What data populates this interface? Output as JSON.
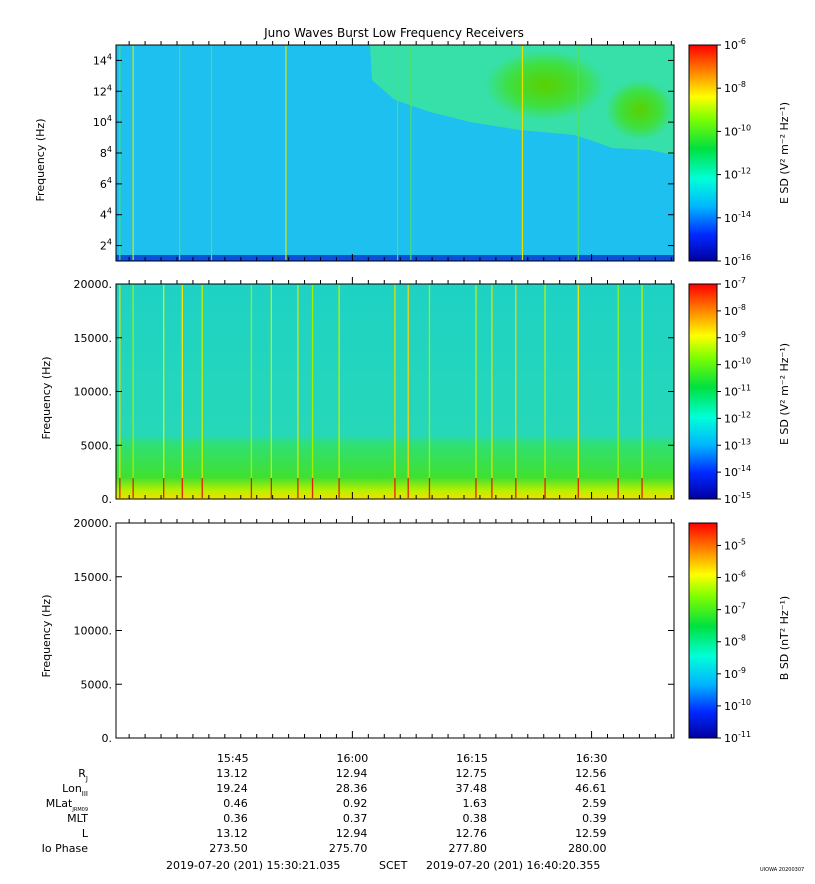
{
  "title": "Juno Waves Burst Low Frequency Receivers",
  "panels": [
    {
      "id": "top",
      "ylabel": "Frequency (Hz)",
      "yticks": [
        {
          "v": 20000,
          "m": "2",
          "e": "4"
        },
        {
          "v": 40000,
          "m": "4",
          "e": "4"
        },
        {
          "v": 60000,
          "m": "6",
          "e": "4"
        },
        {
          "v": 80000,
          "m": "8",
          "e": "4"
        },
        {
          "v": 100000,
          "m": "10",
          "e": "4"
        },
        {
          "v": 120000,
          "m": "12",
          "e": "4"
        },
        {
          "v": 140000,
          "m": "14",
          "e": "4"
        }
      ],
      "ylim": [
        10000,
        150000
      ],
      "colorbar_label": "E SD (V² m⁻² Hz⁻¹)",
      "cb_ticks": [
        {
          "v": -6,
          "m": "10",
          "e": "-6"
        },
        {
          "v": -8,
          "m": "10",
          "e": "-8"
        },
        {
          "v": -10,
          "m": "10",
          "e": "-10"
        },
        {
          "v": -12,
          "m": "10",
          "e": "-12"
        },
        {
          "v": -14,
          "m": "10",
          "e": "-14"
        },
        {
          "v": -16,
          "m": "10",
          "e": "-16"
        }
      ],
      "cb_range": [
        -16,
        -6
      ]
    },
    {
      "id": "middle",
      "ylabel": "Frequency (Hz)",
      "yticks": [
        {
          "v": 0,
          "m": "0."
        },
        {
          "v": 5000,
          "m": "5000."
        },
        {
          "v": 10000,
          "m": "10000."
        },
        {
          "v": 15000,
          "m": "15000."
        },
        {
          "v": 20000,
          "m": "20000."
        }
      ],
      "ylim": [
        0,
        20000
      ],
      "colorbar_label": "E SD (V² m⁻² Hz⁻¹)",
      "cb_ticks": [
        {
          "v": -7,
          "m": "10",
          "e": "-7"
        },
        {
          "v": -8,
          "m": "10",
          "e": "-8"
        },
        {
          "v": -9,
          "m": "10",
          "e": "-9"
        },
        {
          "v": -10,
          "m": "10",
          "e": "-10"
        },
        {
          "v": -11,
          "m": "10",
          "e": "-11"
        },
        {
          "v": -12,
          "m": "10",
          "e": "-12"
        },
        {
          "v": -13,
          "m": "10",
          "e": "-13"
        },
        {
          "v": -14,
          "m": "10",
          "e": "-14"
        },
        {
          "v": -15,
          "m": "10",
          "e": "-15"
        }
      ],
      "cb_range": [
        -15,
        -7
      ]
    },
    {
      "id": "bottom",
      "ylabel": "Frequency (Hz)",
      "yticks": [
        {
          "v": 0,
          "m": "0."
        },
        {
          "v": 5000,
          "m": "5000."
        },
        {
          "v": 10000,
          "m": "10000."
        },
        {
          "v": 15000,
          "m": "15000."
        },
        {
          "v": 20000,
          "m": "20000."
        }
      ],
      "ylim": [
        0,
        20000
      ],
      "colorbar_label": "B SD (nT² Hz⁻¹)",
      "cb_ticks": [
        {
          "v": -5,
          "m": "10",
          "e": "-5"
        },
        {
          "v": -6,
          "m": "10",
          "e": "-6"
        },
        {
          "v": -7,
          "m": "10",
          "e": "-7"
        },
        {
          "v": -8,
          "m": "10",
          "e": "-8"
        },
        {
          "v": -9,
          "m": "10",
          "e": "-9"
        },
        {
          "v": -10,
          "m": "10",
          "e": "-10"
        },
        {
          "v": -11,
          "m": "10",
          "e": "-11"
        }
      ],
      "cb_range": [
        -11,
        -4.3
      ]
    }
  ],
  "xaxis": {
    "start": "15:30:21.035",
    "end": "16:40:20.355",
    "ticks": [
      "15:45",
      "16:00",
      "16:15",
      "16:30"
    ]
  },
  "ephemeris": {
    "rows": [
      {
        "label": "R",
        "sub": "J",
        "values": [
          "13.12",
          "12.94",
          "12.75",
          "12.56"
        ]
      },
      {
        "label": "Lon",
        "sub": "III",
        "values": [
          "19.24",
          "28.36",
          "37.48",
          "46.61"
        ]
      },
      {
        "label": "MLat",
        "sub": "JRM09",
        "values": [
          "0.46",
          "0.92",
          "1.63",
          "2.59"
        ]
      },
      {
        "label": "MLT",
        "sub": "",
        "values": [
          "0.36",
          "0.37",
          "0.38",
          "0.39"
        ]
      },
      {
        "label": "L",
        "sub": "",
        "values": [
          "13.12",
          "12.94",
          "12.76",
          "12.59"
        ]
      },
      {
        "label": "Io Phase",
        "sub": "",
        "values": [
          "273.50",
          "275.70",
          "277.80",
          "280.00"
        ]
      }
    ]
  },
  "footer": {
    "start_label": "2019-07-20 (201) 15:30:21.035",
    "scet": "SCET",
    "end_label": "2019-07-20 (201) 16:40:20.355",
    "stamp": "UIOWA 20200307"
  },
  "chart_data": [
    {
      "type": "heatmap",
      "title": "Juno Waves Burst Low Frequency Receivers",
      "ylabel": "Frequency (Hz)",
      "ylim": [
        10000,
        150000
      ],
      "x_range": [
        "15:30:21.035",
        "16:40:20.355"
      ],
      "colorbar": "E SD (V² m⁻² Hz⁻¹)",
      "color_range_log10": [
        -16,
        -6
      ],
      "features": [
        {
          "name": "background",
          "log10_value": -14
        },
        {
          "name": "enhanced emission region upper right, 16:00-16:40, above ~85000 Hz",
          "log10_value": -11.5
        },
        {
          "name": "narrow vertical bursts",
          "times": [
            "15:30:50",
            "15:32:30",
            "15:38:20",
            "15:42:20",
            "15:51:40",
            "16:05:40",
            "16:07:20",
            "16:21:20",
            "16:28:20"
          ]
        }
      ]
    },
    {
      "type": "heatmap",
      "ylabel": "Frequency (Hz)",
      "ylim": [
        0,
        20000
      ],
      "x_range": [
        "15:30:21.035",
        "16:40:20.355"
      ],
      "colorbar": "E SD (V² m⁻² Hz⁻¹)",
      "color_range_log10": [
        -15,
        -7
      ],
      "features": [
        {
          "name": "background above 5000 Hz",
          "log10_value": -12.7
        },
        {
          "name": "low-frequency band below ~4500 Hz",
          "log10_value": -11.8
        },
        {
          "name": "intense band below ~500 Hz",
          "log10_value": -10.3
        }
      ]
    },
    {
      "type": "heatmap",
      "ylabel": "Frequency (Hz)",
      "ylim": [
        0,
        20000
      ],
      "x_range": [
        "15:30:21.035",
        "16:40:20.355"
      ],
      "colorbar": "B SD (nT² Hz⁻¹)",
      "color_range_log10": [
        -11,
        -4.3
      ],
      "features": []
    }
  ]
}
